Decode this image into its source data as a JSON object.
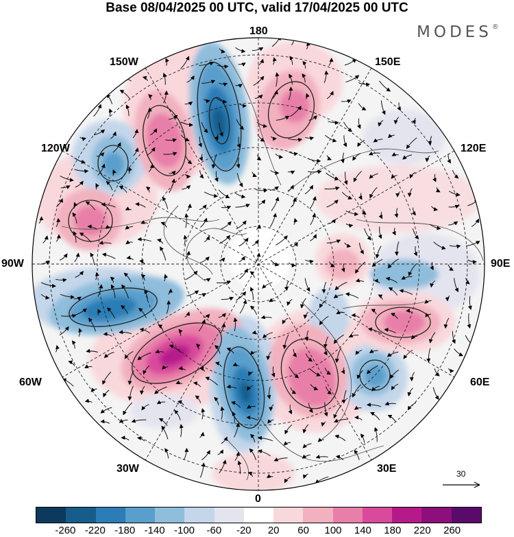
{
  "title": "Base 08/04/2025 00 UTC, valid 17/04/2025 00 UTC",
  "brand": "MODES",
  "brand_mark": "®",
  "longitude_labels": {
    "n180": "180",
    "w150": "150W",
    "e150": "150E",
    "w120": "120W",
    "e120": "120E",
    "w90": "90W",
    "e90": "90E",
    "w60": "60W",
    "e60": "60E",
    "w30": "30W",
    "e30": "30E",
    "n0": "0"
  },
  "vector_reference": {
    "label": "30",
    "icon": "arrow-right-icon"
  },
  "colorbar": {
    "ticks": [
      "-260",
      "-220",
      "-180",
      "-140",
      "-100",
      "-60",
      "-20",
      "20",
      "60",
      "100",
      "140",
      "180",
      "220",
      "260"
    ],
    "colors": [
      "#0d3a5c",
      "#165d8c",
      "#2c7db5",
      "#5a9fcc",
      "#8fbddc",
      "#c4d6ea",
      "#e4e4ef",
      "#ffffff",
      "#f9d8dc",
      "#f2b1be",
      "#e87fa8",
      "#d94a9c",
      "#b61a8a",
      "#8c0f7c",
      "#5a0a6a"
    ]
  },
  "map": {
    "projection": "north polar stereographic",
    "anomaly_centers": [
      {
        "sign": "negative",
        "level": -220,
        "lon_label": "165W"
      },
      {
        "sign": "positive",
        "level": 140,
        "lon_label": "140W"
      },
      {
        "sign": "negative",
        "level": -140,
        "lon_label": "125W"
      },
      {
        "sign": "positive",
        "level": 100,
        "lon_label": "105W"
      },
      {
        "sign": "negative",
        "level": -180,
        "lon_label": "75W"
      },
      {
        "sign": "positive",
        "level": 180,
        "lon_label": "45W"
      },
      {
        "sign": "negative",
        "level": -220,
        "lon_label": "10W"
      },
      {
        "sign": "positive",
        "level": 140,
        "lon_label": "20E"
      },
      {
        "sign": "negative",
        "level": -100,
        "lon_label": "45E"
      },
      {
        "sign": "positive",
        "level": 140,
        "lon_label": "70E"
      },
      {
        "sign": "negative",
        "level": -100,
        "lon_label": "85E"
      },
      {
        "sign": "positive",
        "level": 100,
        "lon_label": "160E"
      }
    ]
  }
}
